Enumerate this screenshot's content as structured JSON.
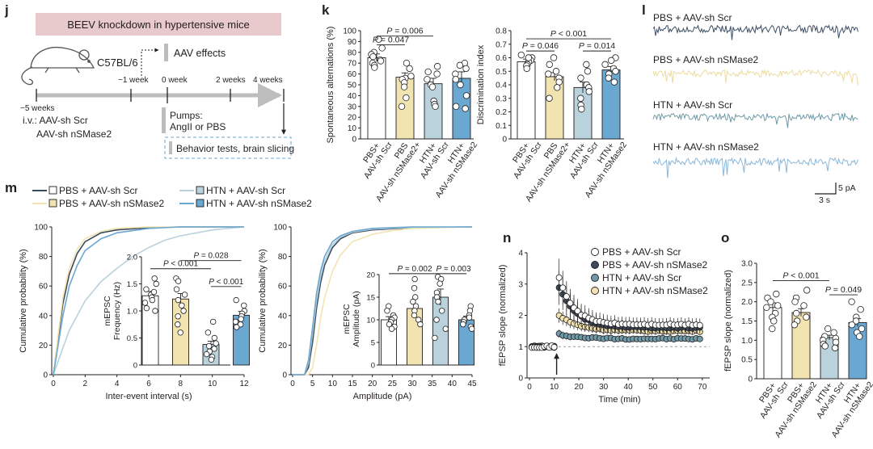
{
  "colors": {
    "pbs_scr": "#3b4a5a",
    "pbs_nsmase2": "#f2e4b0",
    "htn_scr": "#b9d2dc",
    "htn_nsmase2": "#6aa7d1",
    "banner": "#e8c9cc",
    "trace_pbs_scr": "#3f5064",
    "trace_pbs_ns": "#ecdca0",
    "trace_htn_scr": "#6f9aa8",
    "trace_htn_ns": "#8ab8da"
  },
  "panel_j": {
    "label": "j",
    "banner": "BEEV knockdown in hypertensive mice",
    "strain": "C57BL/6",
    "aav_effects": "AAV effects",
    "time_labels": [
      "−5 weeks",
      "−1 week",
      "0 week",
      "2 weeks",
      "4 weeks"
    ],
    "iv_line1": "i.v.: AAV-sh Scr",
    "iv_line2": "AAV-sh nSMase2",
    "pumps_line1": "Pumps:",
    "pumps_line2": "AngII or PBS",
    "behavior": "Behavior tests, brain slicing"
  },
  "panel_k": {
    "label": "k",
    "group_labels": [
      [
        "PBS+",
        "AAV-sh Scr"
      ],
      [
        "PBS",
        "AAV-sh nSMase2+"
      ],
      [
        "HTN+",
        "AAV-sh Scr"
      ],
      [
        "HTN+",
        "AAV-sh nSMase2"
      ]
    ],
    "group_labels_right": [
      [
        "PBS+",
        "AAV-sh Scr"
      ],
      [
        "PBS",
        "AAV-sh nSMase2+"
      ],
      [
        "HTN+",
        "AAV-sh Scr"
      ],
      [
        "HTN+",
        "AAV-sh nSMase2"
      ]
    ]
  },
  "panel_l": {
    "label": "l",
    "traces": [
      "PBS + AAV-sh Scr",
      "PBS + AAV-sh nSMase2",
      "HTN + AAV-sh Scr",
      "HTN + AAV-sh nSMase2"
    ],
    "scale_x": "3 s",
    "scale_y": "5 pA"
  },
  "panel_m": {
    "label": "m",
    "legend": [
      "PBS + AAV-sh Scr",
      "PBS + AAV-sh nSMase2",
      "HTN + AAV-sh Scr",
      "HTN + AAV-sh nSMase2"
    ]
  },
  "panel_n": {
    "label": "n"
  },
  "panel_o": {
    "label": "o",
    "group_labels": [
      [
        "PBS+",
        "AAV-sh Scr"
      ],
      [
        "PBS+",
        "AAV-sh nSMase2"
      ],
      [
        "HTN+",
        "AAV-sh Scr"
      ],
      [
        "HTN+",
        "AAV-sh nSMase2"
      ]
    ]
  },
  "chart_data": [
    {
      "id": "k_alternation",
      "type": "bar",
      "ylabel": "Spontaneous alternations (%)",
      "ylim": [
        0,
        100
      ],
      "yticks": [
        0,
        10,
        20,
        30,
        40,
        50,
        60,
        70,
        80,
        90,
        100
      ],
      "values": [
        75,
        57,
        51,
        56
      ],
      "sem": [
        3.5,
        4,
        5,
        6
      ],
      "points": [
        [
          92,
          84,
          80,
          78,
          76,
          73,
          70,
          68,
          72,
          66
        ],
        [
          70,
          65,
          58,
          56,
          55,
          52,
          48,
          38,
          30
        ],
        [
          67,
          62,
          60,
          55,
          50,
          48,
          35,
          32,
          30
        ],
        [
          70,
          68,
          65,
          60,
          55,
          50,
          40,
          30,
          28
        ]
      ],
      "stats": [
        {
          "text": "P = 0.006",
          "from": 0,
          "to": 2,
          "y": 95
        },
        {
          "text": "P = 0.047",
          "from": 0,
          "to": 1,
          "y": 87
        }
      ]
    },
    {
      "id": "k_discrimination",
      "type": "bar",
      "ylabel": "Discrimination index",
      "ylim": [
        0,
        0.8
      ],
      "yticks": [
        0,
        0.1,
        0.2,
        0.3,
        0.4,
        0.5,
        0.6,
        0.7,
        0.8
      ],
      "ytick_labels": [
        "0",
        "0.1",
        "0.2",
        "0.3",
        "0.4",
        "0.5",
        "0.6",
        "0.7",
        "0.8"
      ],
      "values": [
        0.57,
        0.46,
        0.38,
        0.51
      ],
      "sem": [
        0.02,
        0.03,
        0.04,
        0.025
      ],
      "points": [
        [
          0.62,
          0.6,
          0.58,
          0.57,
          0.55,
          0.54,
          0.52,
          0.6
        ],
        [
          0.6,
          0.55,
          0.5,
          0.48,
          0.45,
          0.42,
          0.38,
          0.3
        ],
        [
          0.55,
          0.5,
          0.45,
          0.4,
          0.38,
          0.35,
          0.3,
          0.25,
          0.22
        ],
        [
          0.6,
          0.58,
          0.55,
          0.52,
          0.5,
          0.48,
          0.45,
          0.42
        ]
      ],
      "stats": [
        {
          "text": "P < 0.001",
          "from": 0,
          "to": 3,
          "y": 0.74
        },
        {
          "text": "P = 0.046",
          "from": 0,
          "to": 1,
          "y": 0.65
        },
        {
          "text": "P = 0.014",
          "from": 2,
          "to": 3,
          "y": 0.65
        }
      ]
    },
    {
      "id": "m_iei_cdf",
      "type": "line",
      "xlabel": "Inter-event interval (s)",
      "ylabel": "Cumulative probability (%)",
      "xlim": [
        0,
        12
      ],
      "ylim": [
        0,
        100
      ],
      "xticks": [
        0,
        2,
        4,
        6,
        8,
        10,
        12
      ],
      "yticks": [
        0,
        20,
        40,
        60,
        80,
        100
      ],
      "series": [
        {
          "group": 0,
          "x": [
            0,
            0.3,
            0.6,
            1,
            1.5,
            2,
            3,
            4,
            6,
            8,
            12
          ],
          "y": [
            0,
            25,
            48,
            68,
            82,
            90,
            96,
            98,
            99.5,
            100,
            100
          ]
        },
        {
          "group": 1,
          "x": [
            0,
            0.3,
            0.6,
            1,
            1.5,
            2,
            3,
            4,
            6,
            8,
            12
          ],
          "y": [
            0,
            27,
            52,
            72,
            85,
            92,
            97,
            99,
            100,
            100,
            100
          ]
        },
        {
          "group": 2,
          "x": [
            0,
            0.5,
            1,
            2,
            3,
            4,
            5,
            6,
            7,
            8,
            10,
            12
          ],
          "y": [
            0,
            15,
            30,
            50,
            63,
            72,
            80,
            86,
            91,
            94,
            98,
            100
          ]
        },
        {
          "group": 3,
          "x": [
            0,
            0.3,
            0.6,
            1,
            1.5,
            2,
            3,
            4,
            6,
            8,
            12
          ],
          "y": [
            0,
            20,
            40,
            60,
            74,
            84,
            92,
            96,
            99,
            100,
            100
          ]
        }
      ]
    },
    {
      "id": "m_freq_inset",
      "type": "bar",
      "ylabel": "mEPSC Frequency (Hz)",
      "xticks": [
        6,
        8,
        10
      ],
      "ylim": [
        0,
        2.0
      ],
      "yticks": [
        0,
        0.5,
        1.0,
        1.5,
        2.0
      ],
      "ytick_labels": [
        "0",
        "0.5",
        "1.0",
        "1.5",
        "2.0"
      ],
      "values": [
        1.28,
        1.22,
        0.38,
        0.92
      ],
      "sem": [
        0.08,
        0.1,
        0.06,
        0.07
      ],
      "points": [
        [
          1.6,
          1.5,
          1.4,
          1.3,
          1.25,
          1.2,
          1.15,
          1.05,
          1.0,
          1.35
        ],
        [
          1.6,
          1.55,
          1.4,
          1.3,
          1.2,
          1.1,
          1.0,
          0.9,
          0.6,
          0.75
        ],
        [
          0.8,
          0.6,
          0.5,
          0.4,
          0.35,
          0.3,
          0.25,
          0.2,
          0.15,
          0.1
        ],
        [
          1.2,
          1.1,
          1.0,
          0.95,
          0.9,
          0.85,
          0.8,
          0.75,
          0.7
        ]
      ],
      "stats": [
        {
          "text": "P = 0.028",
          "from": 1,
          "to": 3,
          "y": 1.93
        },
        {
          "text": "P < 0.001",
          "from": 0,
          "to": 2,
          "y": 1.78
        },
        {
          "text": "P < 0.001",
          "from": 2,
          "to": 3,
          "y": 1.45
        }
      ]
    },
    {
      "id": "m_amp_cdf",
      "type": "line",
      "xlabel": "Amplitude (pA)",
      "ylabel": "Cumulative probability (%)",
      "xlim": [
        0,
        45
      ],
      "ylim": [
        0,
        100
      ],
      "xticks": [
        0,
        5,
        10,
        15,
        20,
        25,
        30,
        35,
        40,
        45
      ],
      "yticks": [
        0,
        20,
        40,
        60,
        80,
        100
      ],
      "series": [
        {
          "group": 0,
          "x": [
            0,
            3,
            4,
            5,
            6,
            7,
            8,
            10,
            12,
            15,
            20,
            30,
            45
          ],
          "y": [
            0,
            0,
            5,
            22,
            45,
            62,
            74,
            86,
            92,
            96,
            98,
            99.5,
            100
          ]
        },
        {
          "group": 1,
          "x": [
            0,
            4,
            5,
            6,
            7,
            8,
            10,
            12,
            15,
            20,
            25,
            30,
            45
          ],
          "y": [
            0,
            0,
            5,
            20,
            38,
            52,
            70,
            81,
            90,
            95,
            97.5,
            99,
            100
          ]
        },
        {
          "group": 2,
          "x": [
            0,
            3,
            4,
            5,
            6,
            7,
            8,
            10,
            12,
            15,
            20,
            30,
            45
          ],
          "y": [
            0,
            0,
            8,
            28,
            50,
            66,
            77,
            88,
            93,
            96.5,
            98.5,
            99.7,
            100
          ]
        },
        {
          "group": 3,
          "x": [
            0,
            3,
            4,
            5,
            6,
            7,
            8,
            10,
            12,
            15,
            20,
            30,
            45
          ],
          "y": [
            0,
            0,
            10,
            32,
            55,
            70,
            80,
            90,
            94,
            97,
            99,
            100,
            100
          ]
        }
      ]
    },
    {
      "id": "m_amp_inset",
      "type": "bar",
      "ylabel": "mEPSC Amplitude (pA)",
      "xticks": [
        25,
        30,
        35,
        40,
        45
      ],
      "ylim": [
        0,
        20
      ],
      "yticks": [
        0,
        5,
        10,
        15,
        20
      ],
      "values": [
        10,
        12.5,
        15,
        10
      ],
      "sem": [
        0.7,
        1,
        1.8,
        0.8
      ],
      "points": [
        [
          13,
          12,
          11,
          10.5,
          10,
          9.5,
          9,
          8.5,
          8
        ],
        [
          19,
          17,
          15,
          14,
          13,
          12,
          11,
          10,
          9
        ],
        [
          19.5,
          19,
          18,
          16,
          15,
          14,
          12,
          10,
          8,
          6
        ],
        [
          13,
          12,
          11,
          10.5,
          10,
          9.5,
          9,
          8.5,
          8
        ]
      ],
      "stats": [
        {
          "text": "P = 0.002",
          "from": 0,
          "to": 2,
          "y": 20.2
        },
        {
          "text": "P = 0.003",
          "from": 2,
          "to": 3,
          "y": 20.2
        }
      ]
    },
    {
      "id": "n_fepsp_time",
      "type": "scatter",
      "xlabel": "Time (min)",
      "ylabel": "fEPSP slope (normalized)",
      "xlim": [
        0,
        73
      ],
      "ylim": [
        0,
        4
      ],
      "xticks": [
        0,
        10,
        20,
        30,
        40,
        50,
        60,
        70
      ],
      "yticks": [
        0,
        1,
        2,
        3,
        4
      ],
      "baseline": 1,
      "arrow_x": 11,
      "legend": [
        "PBS + AAV-sh Scr",
        "PBS + AAV-sh nSMase2",
        "HTN + AAV-sh Scr",
        "HTN + AAV-sh nSMase2"
      ],
      "baseline_x": [
        1,
        2,
        3,
        4,
        5,
        6,
        7,
        8,
        9,
        10
      ],
      "series": [
        {
          "group": 0,
          "x0": 12,
          "peak": 3.2,
          "err": 0.55,
          "plateau": 1.7,
          "tau": 6
        },
        {
          "group": 1,
          "x0": 12,
          "peak": 2.9,
          "err": 0.5,
          "plateau": 1.6,
          "tau": 7
        },
        {
          "group": 2,
          "x0": 12,
          "peak": 1.4,
          "err": 0.08,
          "plateau": 1.25,
          "tau": 8
        },
        {
          "group": 3,
          "x0": 12,
          "peak": 2.0,
          "err": 0.18,
          "plateau": 1.5,
          "tau": 8
        }
      ]
    },
    {
      "id": "o_fepsp_bar",
      "type": "bar",
      "ylabel": "fEPSP slope (normalized)",
      "ylim": [
        0,
        3
      ],
      "yticks": [
        0,
        0.5,
        1.0,
        1.5,
        2.0,
        2.5,
        3.0
      ],
      "ytick_labels": [
        "0",
        "0.5",
        "1.0",
        "1.5",
        "2.0",
        "2.5",
        "3.0"
      ],
      "values": [
        1.85,
        1.72,
        1.07,
        1.46
      ],
      "sem": [
        0.12,
        0.1,
        0.06,
        0.1
      ],
      "points": [
        [
          2.2,
          2.1,
          2.0,
          1.9,
          1.85,
          1.7,
          1.6,
          1.5,
          1.3
        ],
        [
          2.3,
          2.1,
          2.0,
          1.9,
          1.7,
          1.6,
          1.5,
          1.4
        ],
        [
          1.3,
          1.2,
          1.1,
          1.05,
          1.0,
          0.95,
          0.9,
          0.85,
          0.8
        ],
        [
          2.0,
          1.8,
          1.6,
          1.5,
          1.4,
          1.3,
          1.2,
          1.1
        ]
      ],
      "stats": [
        {
          "text": "P < 0.001",
          "from": 0,
          "to": 2,
          "y": 2.55
        },
        {
          "text": "P = 0.049",
          "from": 2,
          "to": 3,
          "y": 2.18
        }
      ]
    }
  ]
}
